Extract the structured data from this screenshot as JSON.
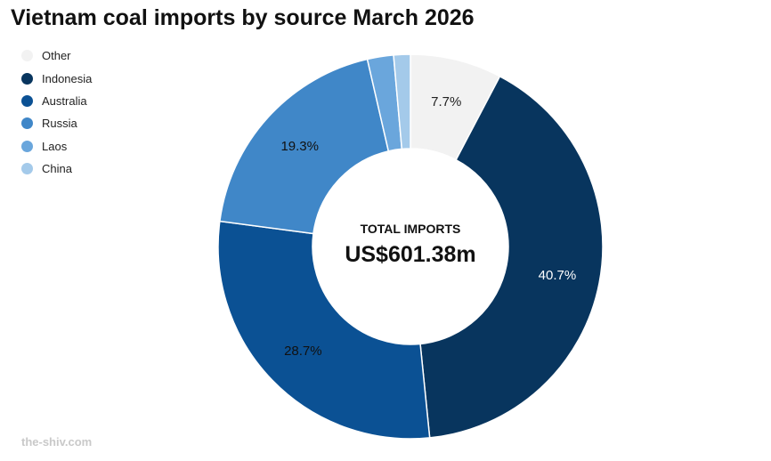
{
  "chart_data": {
    "type": "pie",
    "title": "Vietnam coal imports by source March 2026",
    "center_label": "TOTAL IMPORTS",
    "center_value": "US$601.38m",
    "legend_position": "top-left",
    "slices": [
      {
        "name": "Other",
        "value": 7.7,
        "label": "7.7%",
        "color": "#f2f2f2",
        "label_color": "#222222"
      },
      {
        "name": "Indonesia",
        "value": 40.7,
        "label": "40.7%",
        "color": "#08355e",
        "label_color": "#ffffff"
      },
      {
        "name": "Australia",
        "value": 28.7,
        "label": "28.7%",
        "color": "#0b5194",
        "label_color": "#111111"
      },
      {
        "name": "Russia",
        "value": 19.3,
        "label": "19.3%",
        "color": "#4087c8",
        "label_color": "#111111"
      },
      {
        "name": "Laos",
        "value": 2.2,
        "label": "",
        "color": "#6aa6dc",
        "label_color": "#111111"
      },
      {
        "name": "China",
        "value": 1.4,
        "label": "",
        "color": "#a4caea",
        "label_color": "#111111"
      }
    ]
  },
  "watermark": "the-shiv.com"
}
